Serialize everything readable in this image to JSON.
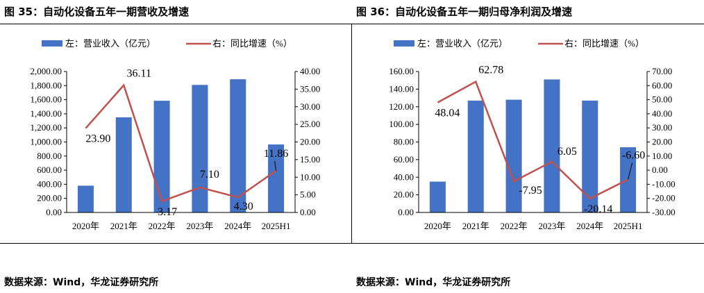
{
  "panels": [
    {
      "title": "图 35：自动化设备五年一期营收及增速",
      "source": "数据来源：Wind，华龙证券研究所"
    },
    {
      "title": "图 36：自动化设备五年一期归母净利润及增速",
      "source": "数据来源：Wind，华龙证券研究所"
    }
  ],
  "chart_data": [
    {
      "type": "bar+line",
      "categories": [
        "2020年",
        "2021年",
        "2022年",
        "2023年",
        "2024年",
        "2025H1"
      ],
      "series": [
        {
          "name": "左：营业收入（亿元）",
          "type": "bar",
          "axis": "left",
          "values": [
            380,
            1350,
            1585,
            1810,
            1890,
            965
          ],
          "color": "#4472C4"
        },
        {
          "name": "右：同比增速（%）",
          "type": "line",
          "axis": "right",
          "values": [
            23.9,
            36.11,
            3.17,
            7.1,
            4.3,
            11.86
          ],
          "color": "#C0504D",
          "labels": [
            "23.90",
            "36.11",
            "3.17",
            "7.10",
            "4.30",
            "11.86"
          ]
        }
      ],
      "left_axis": {
        "min": 0,
        "max": 2000,
        "step": 200,
        "ticks": [
          "0.00",
          "200.00",
          "400.00",
          "600.00",
          "800.00",
          "1,000.00",
          "1,200.00",
          "1,400.00",
          "1,600.00",
          "1,800.00",
          "2,000.00"
        ]
      },
      "right_axis": {
        "min": 0,
        "max": 40,
        "step": 5,
        "ticks": [
          "0.00",
          "5.00",
          "10.00",
          "15.00",
          "20.00",
          "25.00",
          "30.00",
          "35.00",
          "40.00"
        ]
      },
      "legend_position": "top",
      "grid": false
    },
    {
      "type": "bar+line",
      "categories": [
        "2020年",
        "2021年",
        "2022年",
        "2023年",
        "2024年",
        "2025H1"
      ],
      "series": [
        {
          "name": "左：营业收入（亿元）",
          "type": "bar",
          "axis": "left",
          "values": [
            35,
            127,
            128,
            151,
            127,
            74
          ],
          "color": "#4472C4"
        },
        {
          "name": "右：同比增速（%）",
          "type": "line",
          "axis": "right",
          "values": [
            48.04,
            62.78,
            -7.95,
            6.05,
            -20.14,
            -6.6
          ],
          "color": "#C0504D",
          "labels": [
            "48.04",
            "62.78",
            "-7.95",
            "6.05",
            "-20.14",
            "-6.60"
          ]
        }
      ],
      "left_axis": {
        "min": 0,
        "max": 160,
        "step": 20,
        "ticks": [
          "0.00",
          "20.00",
          "40.00",
          "60.00",
          "80.00",
          "100.00",
          "120.00",
          "140.00",
          "160.00"
        ]
      },
      "right_axis": {
        "min": -30,
        "max": 70,
        "step": 10,
        "ticks": [
          "-30.00",
          "-20.00",
          "-10.00",
          "0.00",
          "10.00",
          "20.00",
          "30.00",
          "40.00",
          "50.00",
          "60.00",
          "70.00"
        ]
      },
      "legend_position": "top",
      "grid": false
    }
  ]
}
